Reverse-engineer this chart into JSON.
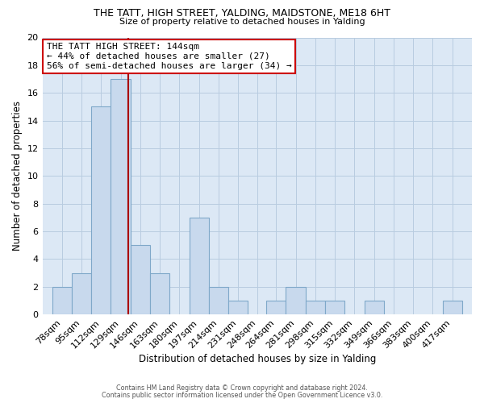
{
  "title": "THE TATT, HIGH STREET, YALDING, MAIDSTONE, ME18 6HT",
  "subtitle": "Size of property relative to detached houses in Yalding",
  "xlabel": "Distribution of detached houses by size in Yalding",
  "ylabel": "Number of detached properties",
  "bin_labels": [
    "78sqm",
    "95sqm",
    "112sqm",
    "129sqm",
    "146sqm",
    "163sqm",
    "180sqm",
    "197sqm",
    "214sqm",
    "231sqm",
    "248sqm",
    "264sqm",
    "281sqm",
    "298sqm",
    "315sqm",
    "332sqm",
    "349sqm",
    "366sqm",
    "383sqm",
    "400sqm",
    "417sqm"
  ],
  "bin_edges": [
    78,
    95,
    112,
    129,
    146,
    163,
    180,
    197,
    214,
    231,
    248,
    264,
    281,
    298,
    315,
    332,
    349,
    366,
    383,
    400,
    417
  ],
  "counts": [
    2,
    3,
    15,
    17,
    5,
    3,
    0,
    7,
    2,
    1,
    0,
    1,
    2,
    1,
    1,
    0,
    1,
    0,
    0,
    0,
    1
  ],
  "property_line_x": 144,
  "bar_color": "#c8d9ed",
  "bar_edge_color": "#7fa8c9",
  "vline_color": "#aa0000",
  "annotation_title": "THE TATT HIGH STREET: 144sqm",
  "annotation_line1": "← 44% of detached houses are smaller (27)",
  "annotation_line2": "56% of semi-detached houses are larger (34) →",
  "annotation_box_facecolor": "#ffffff",
  "annotation_box_edgecolor": "#cc0000",
  "grid_color": "#b8cce0",
  "plot_bg_color": "#dce8f5",
  "fig_bg_color": "#ffffff",
  "ylim": [
    0,
    20
  ],
  "yticks": [
    0,
    2,
    4,
    6,
    8,
    10,
    12,
    14,
    16,
    18,
    20
  ],
  "footer1": "Contains HM Land Registry data © Crown copyright and database right 2024.",
  "footer2": "Contains public sector information licensed under the Open Government Licence v3.0."
}
